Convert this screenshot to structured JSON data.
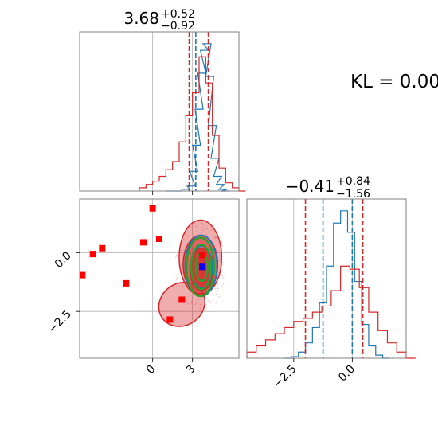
{
  "colors": {
    "blue": "#1f77b4",
    "red": "#d62728",
    "green": "#2ca02c",
    "marker_red": "#ff0000",
    "marker_blue": "#0000ff",
    "grid": "#b0b0b0",
    "axis": "#808080"
  },
  "kl_text": "KL = 0.00",
  "chart_data": [
    {
      "type": "histogram",
      "panel": "marginal-x",
      "title": {
        "median": "3.68",
        "plus": "+0.52",
        "minus": "−0.92"
      },
      "xlim": [
        -5.5,
        6.5
      ],
      "x_ticks": [
        0,
        3
      ],
      "grid": true,
      "series": [
        {
          "color": "#1f77b4",
          "bins_x": [
            1.0,
            1.6,
            2.2,
            2.6,
            2.8,
            3.0,
            3.2,
            3.4,
            3.6,
            3.8,
            4.0,
            4.2,
            4.4,
            4.6,
            4.8,
            5.0,
            5.2
          ],
          "counts": [
            0,
            0,
            1,
            3,
            12,
            28,
            50,
            72,
            86,
            90,
            70,
            40,
            20,
            9,
            4,
            1,
            0
          ],
          "quantile_lines": [
            3.25,
            4.2
          ]
        },
        {
          "color": "#d62728",
          "bins_x": [
            -1.0,
            -0.5,
            0.0,
            0.5,
            1.0,
            1.5,
            2.0,
            2.5,
            3.0,
            3.5,
            4.0,
            4.5,
            5.0,
            5.5,
            6.0,
            6.5
          ],
          "counts": [
            2,
            4,
            6,
            9,
            13,
            18,
            30,
            46,
            60,
            82,
            66,
            34,
            14,
            5,
            2,
            0
          ],
          "quantile_lines": [
            2.75,
            4.2
          ]
        }
      ]
    },
    {
      "type": "histogram",
      "panel": "marginal-y",
      "title": {
        "median": "−0.41",
        "plus": "+0.84",
        "minus": "−1.56"
      },
      "xlim": [
        -4.5,
        2.3
      ],
      "x_ticks": [
        -2.5,
        0.0
      ],
      "x_ticklabels": [
        "−2.5",
        "0.0"
      ],
      "grid": true,
      "series": [
        {
          "color": "#1f77b4",
          "bins_x": [
            -2.9,
            -2.6,
            -2.3,
            -2.0,
            -1.7,
            -1.4,
            -1.1,
            -0.8,
            -0.5,
            -0.2,
            0.1,
            0.4,
            0.7,
            1.0,
            1.3
          ],
          "counts": [
            0,
            1,
            4,
            10,
            20,
            36,
            60,
            88,
            96,
            82,
            50,
            22,
            8,
            2,
            0
          ],
          "quantile_lines": [
            -1.25,
            0.0
          ]
        },
        {
          "color": "#d62728",
          "bins_x": [
            -4.5,
            -4.1,
            -3.7,
            -3.3,
            -2.9,
            -2.5,
            -2.1,
            -1.7,
            -1.3,
            -0.9,
            -0.5,
            -0.1,
            0.3,
            0.7,
            1.1,
            1.5,
            1.9,
            2.3
          ],
          "counts": [
            4,
            8,
            12,
            16,
            20,
            24,
            26,
            30,
            34,
            44,
            60,
            58,
            46,
            30,
            18,
            10,
            4,
            0
          ],
          "quantile_lines": [
            -2.0,
            0.45
          ]
        }
      ]
    },
    {
      "type": "scatter",
      "panel": "joint",
      "xlim": [
        -5.5,
        6.5
      ],
      "ylim": [
        -4.5,
        2.3
      ],
      "x_ticks": [
        0,
        3
      ],
      "y_ticks": [
        0.0,
        -2.5
      ],
      "y_ticklabels": [
        "0.0",
        "−2.5"
      ],
      "grid": true,
      "red_markers": [
        {
          "x": 0.0,
          "y": 1.9
        },
        {
          "x": -0.7,
          "y": 0.45
        },
        {
          "x": 0.5,
          "y": 0.6
        },
        {
          "x": -3.8,
          "y": 0.2
        },
        {
          "x": -4.5,
          "y": -0.05
        },
        {
          "x": -5.3,
          "y": -0.95
        },
        {
          "x": -2.0,
          "y": -1.3
        },
        {
          "x": 2.2,
          "y": -2.0
        },
        {
          "x": 1.3,
          "y": -2.85
        },
        {
          "x": 3.75,
          "y": -0.1
        }
      ],
      "blue_marker": {
        "x": 3.75,
        "y": -0.6
      },
      "red_contours": [
        {
          "cx": 3.6,
          "cy": -0.2,
          "rx": 1.6,
          "ry": 1.6,
          "level": "outer"
        },
        {
          "cx": 2.2,
          "cy": -2.2,
          "rx": 1.8,
          "ry": 0.9,
          "level": "outer-tail"
        },
        {
          "cx": 3.6,
          "cy": -0.5,
          "rx": 1.3,
          "ry": 1.25,
          "level": "middle"
        },
        {
          "cx": 3.7,
          "cy": -0.7,
          "rx": 0.9,
          "ry": 0.9,
          "level": "inner"
        }
      ],
      "blue_contours": [
        {
          "cx": 3.65,
          "cy": -0.55,
          "rx": 1.2,
          "ry": 1.3
        },
        {
          "cx": 3.7,
          "cy": -0.6,
          "rx": 0.8,
          "ry": 0.9
        }
      ],
      "green_contours": [
        {
          "cx": 3.6,
          "cy": -0.6,
          "rx": 1.05,
          "ry": 1.25
        },
        {
          "cx": 3.65,
          "cy": -0.6,
          "rx": 0.75,
          "ry": 0.95
        },
        {
          "cx": 3.7,
          "cy": -0.6,
          "rx": 0.45,
          "ry": 0.6
        }
      ]
    }
  ]
}
